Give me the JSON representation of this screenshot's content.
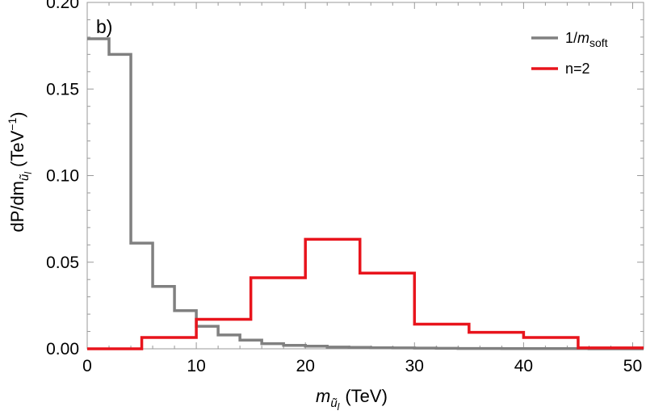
{
  "chart_data": {
    "type": "histogram",
    "panel_label": "b)",
    "xlabel": {
      "main": "m",
      "sub": "ũ",
      "subsub": "l",
      "unit": "(TeV)"
    },
    "ylabel": {
      "prefix": "dP/dm",
      "sub": "ũ",
      "subsub": "l",
      "unit_open": "(TeV",
      "unit_exp": "−1",
      "unit_close": ")"
    },
    "xlim": [
      0,
      51
    ],
    "ylim": [
      0,
      0.2
    ],
    "x_ticks": [
      0,
      10,
      20,
      30,
      40,
      50
    ],
    "x_tick_labels": [
      "0",
      "10",
      "20",
      "30",
      "40",
      "50"
    ],
    "y_ticks": [
      0,
      0.05,
      0.1,
      0.15,
      0.2
    ],
    "y_tick_labels": [
      "0.00",
      "0.05",
      "0.10",
      "0.15",
      "0.20"
    ],
    "legend_position": "top-right",
    "series": [
      {
        "name": "1/m_soft",
        "legend_main": "1/",
        "legend_italic": "m",
        "legend_sub": "soft",
        "color": "#808080",
        "bin_edges": [
          0,
          2,
          4,
          6,
          8,
          10,
          12,
          14,
          16,
          18,
          20,
          22,
          24,
          26,
          28,
          30,
          32,
          34,
          36,
          38,
          40,
          42,
          44,
          46,
          48,
          50,
          51
        ],
        "values": [
          0.179,
          0.17,
          0.061,
          0.036,
          0.022,
          0.013,
          0.008,
          0.005,
          0.003,
          0.002,
          0.0015,
          0.001,
          0.0008,
          0.0006,
          0.0005,
          0.0004,
          0.0003,
          0.0002,
          0.0002,
          0.0001,
          0.0001,
          0.0001,
          0.0001,
          0.0,
          0.0,
          0.0
        ]
      },
      {
        "name": "n=2",
        "legend_main": "n=2",
        "color": "#e8141c",
        "bin_edges": [
          0,
          5,
          10,
          15,
          20,
          25,
          30,
          35,
          40,
          45,
          51
        ],
        "values": [
          0.0,
          0.0065,
          0.017,
          0.041,
          0.0632,
          0.0437,
          0.0142,
          0.0095,
          0.0065,
          0.0005
        ]
      }
    ]
  }
}
